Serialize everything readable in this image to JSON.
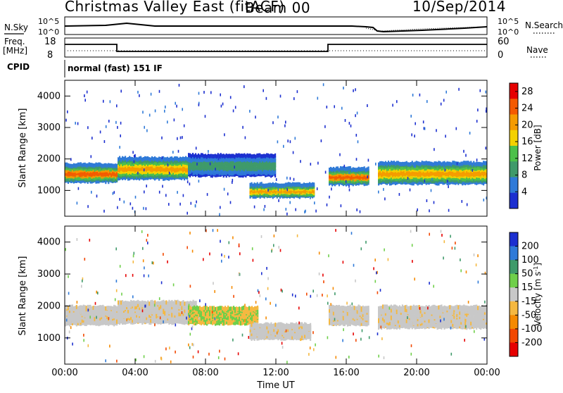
{
  "header": {
    "title": "Christmas Valley East (fitACF)",
    "beam": "Beam 00",
    "date": "10/Sep/2014"
  },
  "status_panels": {
    "nsky_label": "N.Sky",
    "nsearch_label": "N.Search",
    "noise_ticks": [
      "10^5",
      "10^0"
    ],
    "freq_label_1": "Freq.",
    "freq_label_2": "[MHz]",
    "freq_ticks": [
      "18",
      "8"
    ],
    "nave_label": "Nave",
    "nave_ticks": [
      "60",
      "0"
    ],
    "cpid_label": "CPID",
    "cpid_text": "normal (fast) 151 IF"
  },
  "colors": {
    "power_scale": [
      "#1c2fd0",
      "#2f7ad8",
      "#3f9a6a",
      "#4cc04a",
      "#f3d100",
      "#f59b00",
      "#f45a00",
      "#e60000"
    ],
    "velocity_scale": [
      "#1c2fd0",
      "#2f7ad8",
      "#3f9a6a",
      "#6fcf4a",
      "#c8c8c8",
      "#f5b840",
      "#f58a00",
      "#f24800",
      "#e60000"
    ],
    "ground_scatter": "#bdbdbd"
  },
  "chart_data": [
    {
      "type": "heatmap",
      "title": "Power",
      "xlabel": "Time UT",
      "ylabel": "Slant Range [km]",
      "xlim": [
        "00:00",
        "24:00"
      ],
      "ylim": [
        180,
        4500
      ],
      "x_ticks": [
        "00:00",
        "04:00",
        "08:00",
        "12:00",
        "16:00",
        "20:00",
        "00:00"
      ],
      "y_ticks": [
        1000,
        2000,
        3000,
        4000
      ],
      "colorbar": {
        "label": "Power [dB]",
        "ticks": [
          4,
          8,
          12,
          16,
          20,
          24,
          28
        ],
        "range": [
          0,
          30
        ]
      },
      "scatter_bands": [
        {
          "t_start": 0.0,
          "t_end": 3.0,
          "range_center_km": 1550,
          "width_km": 500,
          "peak_db": 28
        },
        {
          "t_start": 3.0,
          "t_end": 7.0,
          "range_center_km": 1700,
          "width_km": 600,
          "peak_db": 26
        },
        {
          "t_start": 7.0,
          "t_end": 12.0,
          "range_center_km": 1800,
          "width_km": 600,
          "peak_db": 10
        },
        {
          "t_start": 10.5,
          "t_end": 14.2,
          "range_center_km": 1000,
          "width_km": 350,
          "peak_db": 24
        },
        {
          "t_start": 15.0,
          "t_end": 17.3,
          "range_center_km": 1450,
          "width_km": 450,
          "peak_db": 28
        },
        {
          "t_start": 17.8,
          "t_end": 24.0,
          "range_center_km": 1550,
          "width_km": 600,
          "peak_db": 26
        }
      ]
    },
    {
      "type": "heatmap",
      "title": "Velocity",
      "xlabel": "Time UT",
      "ylabel": "Slant Range [km]",
      "xlim": [
        "00:00",
        "24:00"
      ],
      "ylim": [
        180,
        4500
      ],
      "x_ticks": [
        "00:00",
        "04:00",
        "08:00",
        "12:00",
        "16:00",
        "20:00",
        "00:00"
      ],
      "y_ticks": [
        1000,
        2000,
        3000,
        4000
      ],
      "colorbar": {
        "label": "Velocity [m s-1]",
        "ticks": [
          200,
          100,
          50,
          15,
          -15,
          -50,
          -100,
          -200
        ]
      },
      "scatter_bands": [
        {
          "t_start": 0.0,
          "t_end": 3.0,
          "range_center_km": 1700,
          "width_km": 500,
          "velocity": 0
        },
        {
          "t_start": 3.0,
          "t_end": 7.5,
          "range_center_km": 1800,
          "width_km": 600,
          "velocity": 0
        },
        {
          "t_start": 7.0,
          "t_end": 11.0,
          "range_center_km": 1700,
          "width_km": 450,
          "velocity": -50
        },
        {
          "t_start": 10.5,
          "t_end": 14.0,
          "range_center_km": 1200,
          "width_km": 400,
          "velocity": 0
        },
        {
          "t_start": 15.0,
          "t_end": 17.3,
          "range_center_km": 1700,
          "width_km": 500,
          "velocity": 0
        },
        {
          "t_start": 17.8,
          "t_end": 24.0,
          "range_center_km": 1650,
          "width_km": 600,
          "velocity": 0
        }
      ]
    }
  ]
}
